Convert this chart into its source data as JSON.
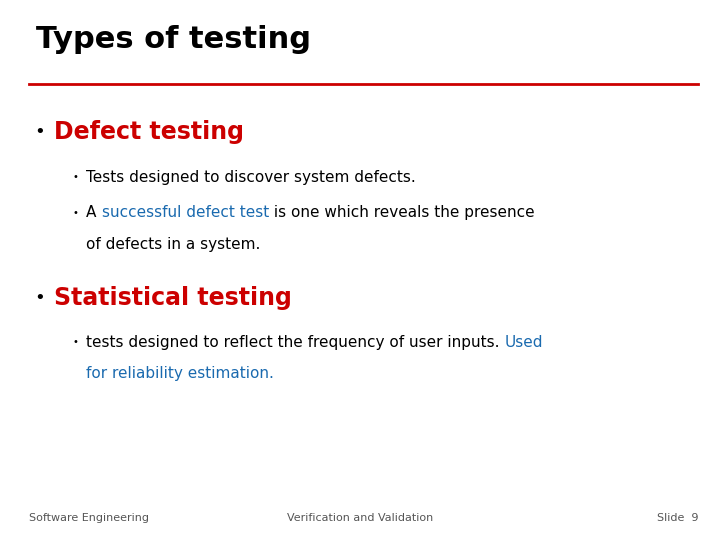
{
  "title": "Types of testing",
  "title_color": "#000000",
  "title_fontsize": 22,
  "separator_color": "#cc0000",
  "bullet1_header": "Defect testing",
  "bullet1_header_color": "#cc0000",
  "bullet1_header_fontsize": 17,
  "sub_bullet1_1": "Tests designed to discover system defects.",
  "sub_bullet1_2_part1": "A ",
  "sub_bullet1_2_highlight": "successful defect test",
  "sub_bullet1_2_part2": " is one which reveals the presence",
  "sub_bullet1_2_line2": "of defects in a system.",
  "bullet2_header": "Statistical testing",
  "bullet2_header_color": "#cc0000",
  "bullet2_header_fontsize": 17,
  "sub_bullet2_1_part1": "tests designed to reflect the frequency of user inputs. ",
  "sub_bullet2_1_highlight": "Used",
  "sub_bullet2_1_line2": "for reliability estimation.",
  "sub_bullet_fontsize": 11,
  "sub_bullet_color": "#000000",
  "sub_bullet_highlight_color": "#1a6aaf",
  "footer_left": "Software Engineering",
  "footer_center": "Verification and Validation",
  "footer_right": "Slide  9",
  "footer_fontsize": 8,
  "footer_color": "#555555",
  "bg_color": "#ffffff",
  "bullet_marker": "•",
  "small_bullet": "•"
}
